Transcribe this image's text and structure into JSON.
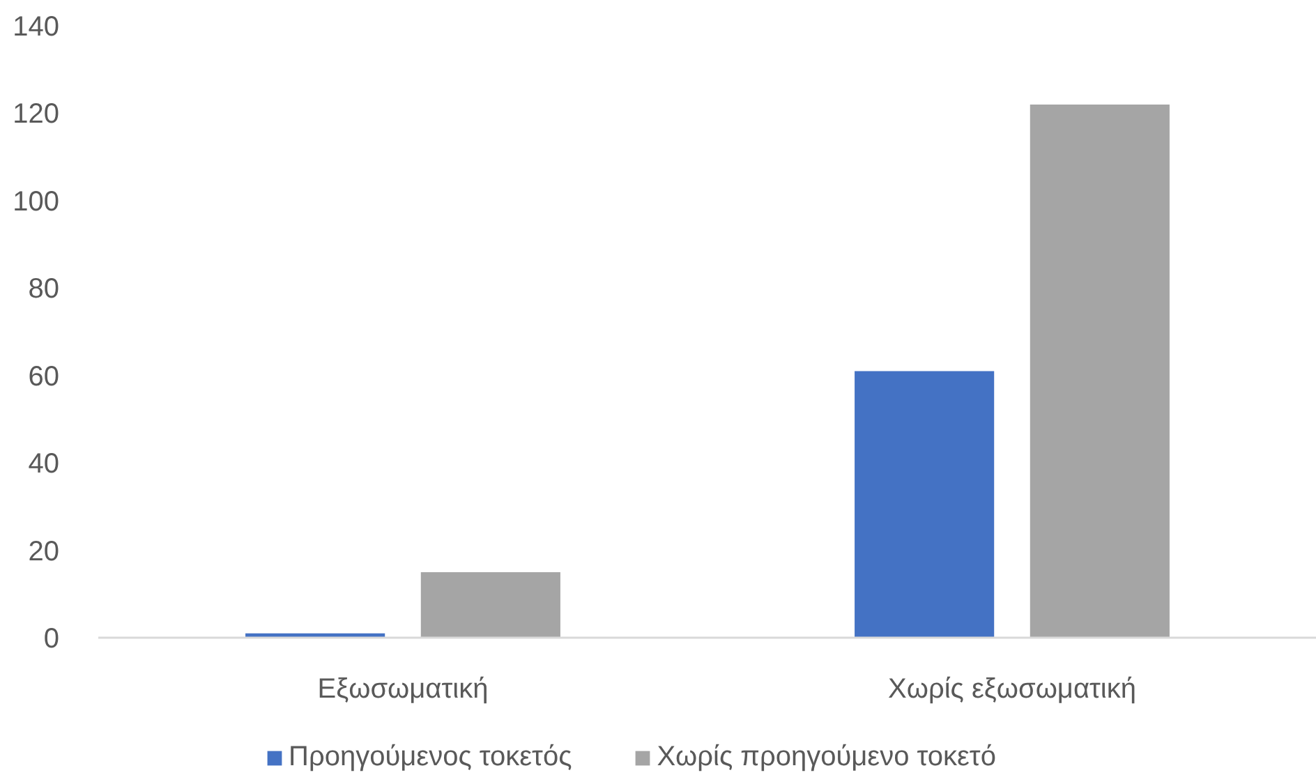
{
  "chart_data": {
    "type": "bar",
    "categories": [
      "Εξωσωματική",
      "Χωρίς εξωσωματική"
    ],
    "series": [
      {
        "name": "Προηγούμενος τοκετός",
        "color": "#4472c4",
        "values": [
          1,
          61
        ]
      },
      {
        "name": "Χωρίς προηγούμενο τοκετό",
        "color": "#a5a5a5",
        "values": [
          15,
          122
        ]
      }
    ],
    "ylim": [
      0,
      140
    ],
    "yticks": [
      0,
      20,
      40,
      60,
      80,
      100,
      120,
      140
    ],
    "grid": false,
    "legend": "bottom"
  }
}
